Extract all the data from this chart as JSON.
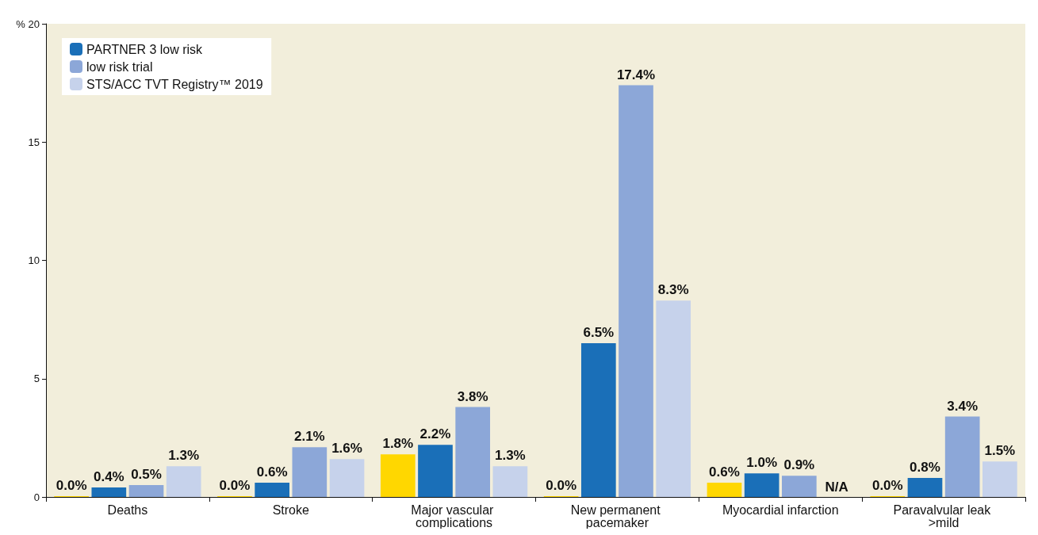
{
  "chart_data": {
    "type": "bar",
    "categories": [
      "Deaths",
      "Stroke",
      "Major vascular complications",
      "New permanent pacemaker",
      "Myocardial infarction",
      "Paravalvular leak >mild"
    ],
    "series": [
      {
        "color": "#ffd700",
        "values": [
          0.0,
          0.0,
          1.8,
          0.0,
          0.6,
          0.0
        ],
        "value_labels": [
          "0.0%",
          "0.0%",
          "1.8%",
          "0.0%",
          "0.6%",
          "0.0%"
        ]
      },
      {
        "name": "PARTNER 3 low risk",
        "color": "#1a6fb8",
        "values": [
          0.4,
          0.6,
          2.2,
          6.5,
          1.0,
          0.8
        ],
        "value_labels": [
          "0.4%",
          "0.6%",
          "2.2%",
          "6.5%",
          "1.0%",
          "0.8%"
        ]
      },
      {
        "name": "low risk trial",
        "color": "#8ca7d8",
        "values": [
          0.5,
          2.1,
          3.8,
          17.4,
          0.9,
          3.4
        ],
        "value_labels": [
          "0.5%",
          "2.1%",
          "3.8%",
          "17.4%",
          "0.9%",
          "3.4%"
        ]
      },
      {
        "name": "STS/ACC TVT Registry™ 2019",
        "color": "#c6d2eb",
        "values": [
          1.3,
          1.6,
          1.3,
          8.3,
          null,
          1.5
        ],
        "value_labels": [
          "1.3%",
          "1.6%",
          "1.3%",
          "8.3%",
          "N/A",
          "1.5%"
        ]
      }
    ],
    "ylim": [
      0,
      20
    ],
    "yticks": [
      0,
      5,
      10,
      15,
      {
        "value": 20,
        "label": "% 20"
      }
    ],
    "grid": false,
    "legend": "top left"
  }
}
